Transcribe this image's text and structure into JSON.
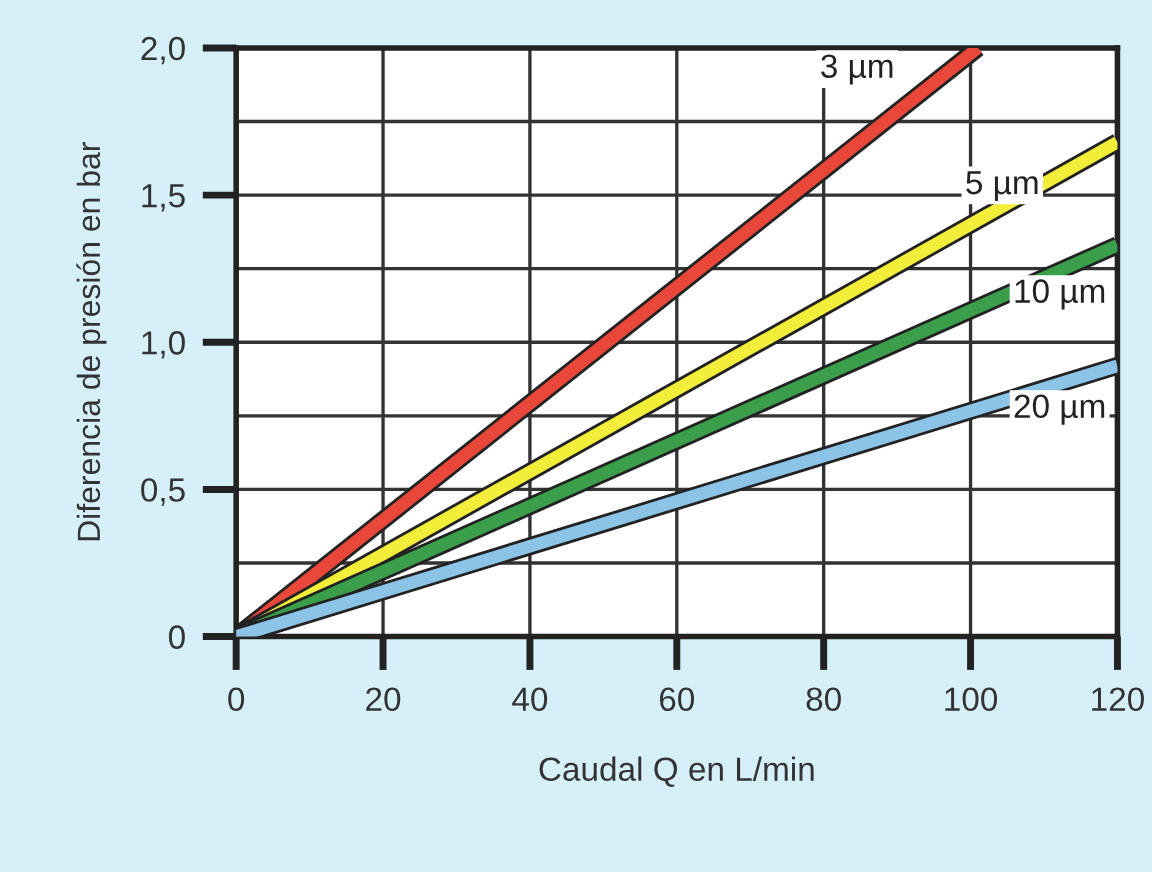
{
  "chart_data": {
    "type": "line",
    "xlabel": "Caudal Q en L/min",
    "ylabel": "Diferencia de presión en bar",
    "xlim": [
      0,
      120
    ],
    "xticks": [
      0,
      20,
      40,
      60,
      80,
      100,
      120
    ],
    "ylim": [
      0,
      2.0
    ],
    "yticks": [
      {
        "value": 0,
        "label": "0"
      },
      {
        "value": 0.5,
        "label": "0,5"
      },
      {
        "value": 1.0,
        "label": "1,0"
      },
      {
        "value": 1.5,
        "label": "1,5"
      },
      {
        "value": 2.0,
        "label": "2,0"
      }
    ],
    "grid": true,
    "legend": false,
    "marker": "none",
    "line_style": "solid",
    "series": [
      {
        "name": "3 µm",
        "color": "#e8473a",
        "x": [
          0,
          101
        ],
        "values": [
          0,
          2.0
        ]
      },
      {
        "name": "5 µm",
        "color": "#f2ee3a",
        "x": [
          0,
          120
        ],
        "values": [
          0,
          1.68
        ]
      },
      {
        "name": "10 µm",
        "color": "#3a9e4a",
        "x": [
          0,
          120
        ],
        "values": [
          0,
          1.33
        ]
      },
      {
        "name": "20 µm",
        "color": "#8cc4e8",
        "x": [
          0,
          120
        ],
        "values": [
          0,
          0.92
        ]
      }
    ]
  }
}
